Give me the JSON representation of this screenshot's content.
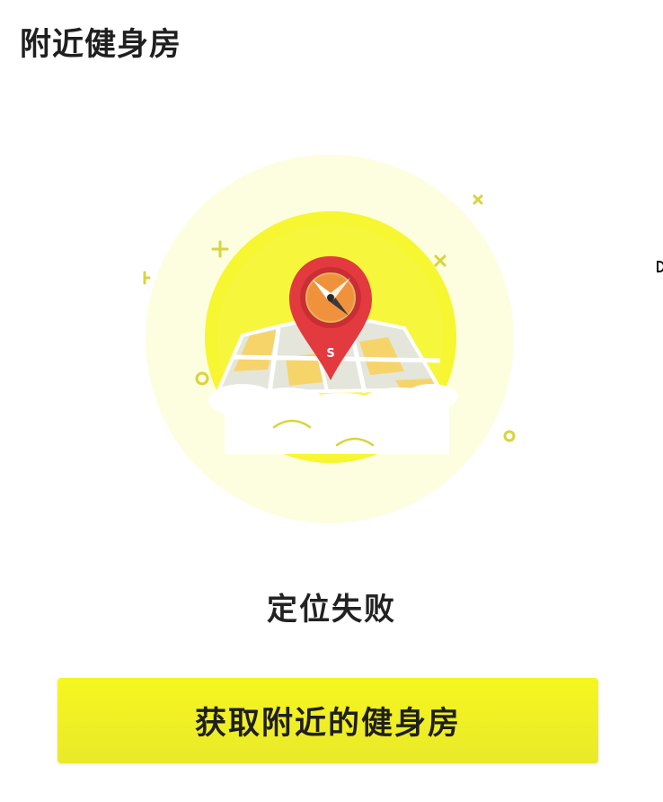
{
  "header": {
    "title": "附近健身房"
  },
  "status": {
    "message": "定位失败"
  },
  "action": {
    "button_label": "获取附近的健身房"
  },
  "illustration": {
    "pin_label": "S",
    "icon": "location-pin-map-icon"
  },
  "colors": {
    "button_yellow": "#f4f422",
    "outer_halo": "#fdfde0",
    "inner_circle": "#f5f530",
    "pin_red": "#e23a3f",
    "compass_orange": "#f0923c"
  }
}
